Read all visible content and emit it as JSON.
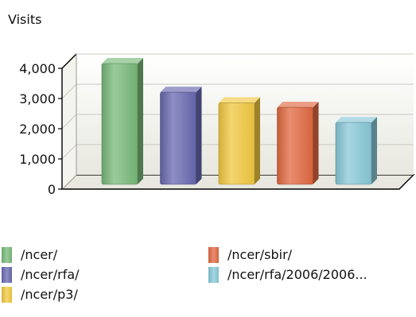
{
  "chart_data": {
    "type": "bar",
    "title": "",
    "ylabel": "Visits",
    "xlabel": "",
    "ylim": [
      0,
      4000
    ],
    "yticks": [
      0,
      1000,
      2000,
      3000,
      4000
    ],
    "ytick_labels": [
      "0",
      "1,000",
      "2,000",
      "3,000",
      "4,000"
    ],
    "grid": true,
    "legend_position": "bottom",
    "categories": [
      "/ncer/",
      "/ncer/rfa/",
      "/ncer/p3/",
      "/ncer/sbir/",
      "/ncer/rfa/2006/2006..."
    ],
    "values": [
      4000,
      3050,
      2700,
      2550,
      2050
    ],
    "colors": [
      "#78b878",
      "#6868b0",
      "#f0c840",
      "#e06840",
      "#88c8d8"
    ]
  }
}
